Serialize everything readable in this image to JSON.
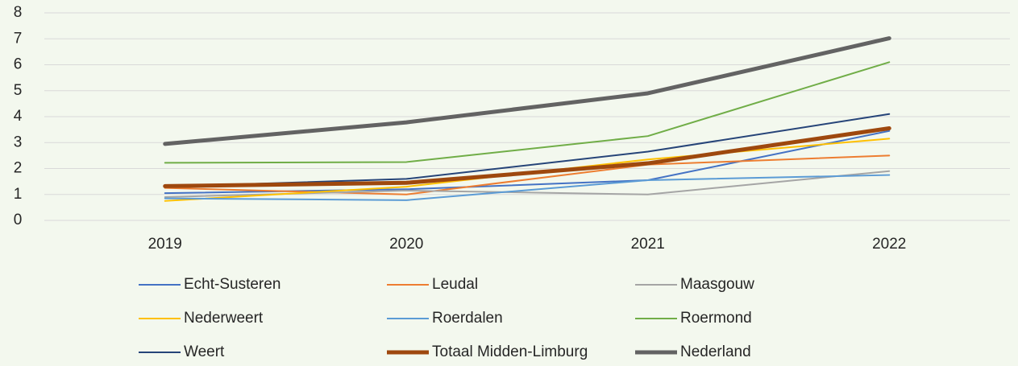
{
  "chart_data": {
    "type": "line",
    "categories": [
      "2019",
      "2020",
      "2021",
      "2022"
    ],
    "ylim": [
      0,
      8
    ],
    "yticks": [
      0,
      1,
      2,
      3,
      4,
      5,
      6,
      7,
      8
    ],
    "grid": true,
    "legend": "bottom",
    "series": [
      {
        "name": "Echt-Susteren",
        "color": "#4472c4",
        "values": [
          1.05,
          1.2,
          1.55,
          3.45
        ]
      },
      {
        "name": "Leudal",
        "color": "#ed7d31",
        "values": [
          1.25,
          1.0,
          2.15,
          2.5
        ]
      },
      {
        "name": "Maasgouw",
        "color": "#a5a5a5",
        "values": [
          0.9,
          1.15,
          1.0,
          1.9
        ]
      },
      {
        "name": "Nederweert",
        "color": "#ffc000",
        "values": [
          0.75,
          1.3,
          2.35,
          3.15
        ]
      },
      {
        "name": "Roerdalen",
        "color": "#5b9bd5",
        "values": [
          0.85,
          0.78,
          1.55,
          1.75
        ]
      },
      {
        "name": "Roermond",
        "color": "#70ad47",
        "values": [
          2.22,
          2.25,
          3.25,
          6.1
        ]
      },
      {
        "name": "Weert",
        "color": "#264478",
        "values": [
          1.3,
          1.6,
          2.65,
          4.1
        ]
      },
      {
        "name": "Totaal Midden-Limburg",
        "color": "#9e480e",
        "values": [
          1.32,
          1.45,
          2.2,
          3.55
        ]
      },
      {
        "name": "Nederland",
        "color": "#636363",
        "values": [
          2.95,
          3.78,
          4.9,
          7.02
        ]
      }
    ]
  }
}
